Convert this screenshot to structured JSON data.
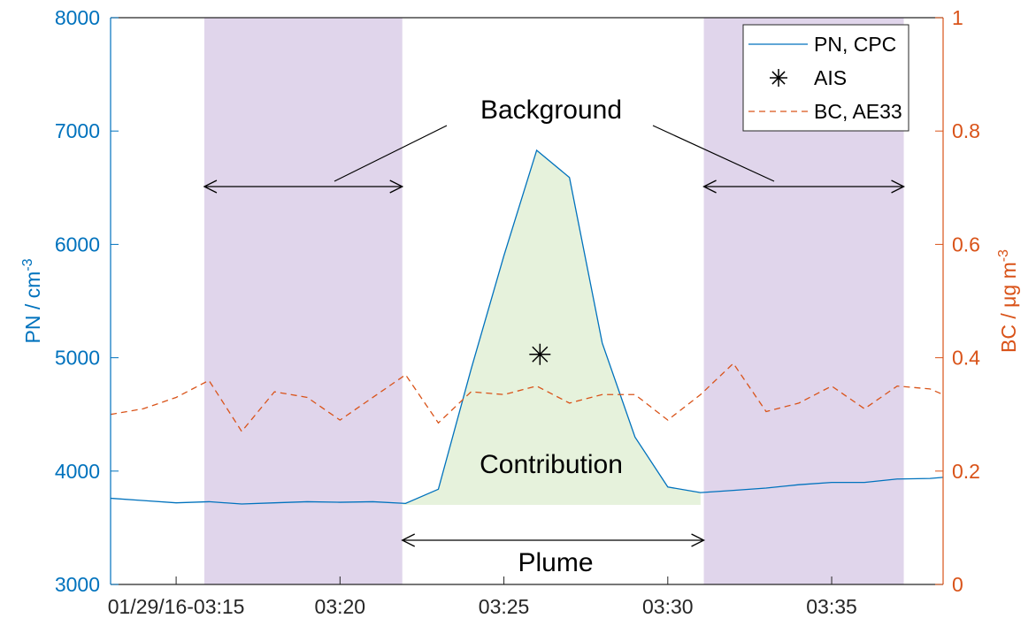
{
  "chart_data": {
    "type": "line",
    "y_label": {
      "text": "PN / cm",
      "sup": "-3"
    },
    "y2_label": {
      "text": "BC / μg m",
      "sup": "-3"
    },
    "xlim": [
      13,
      38.4
    ],
    "xticks": [
      {
        "value": 15,
        "label": "01/29/16-03:15"
      },
      {
        "value": 20,
        "label": "03:20"
      },
      {
        "value": 25,
        "label": "03:25"
      },
      {
        "value": 30,
        "label": "03:30"
      },
      {
        "value": 35,
        "label": "03:35"
      }
    ],
    "ylim": [
      3000,
      8000
    ],
    "yticks": [
      3000,
      4000,
      5000,
      6000,
      7000,
      8000
    ],
    "y2lim": [
      0,
      1
    ],
    "y2ticks": [
      0,
      0.2,
      0.4,
      0.6,
      0.8,
      1
    ],
    "background_periods": [
      [
        15.86,
        21.9
      ],
      [
        31.1,
        37.2
      ]
    ],
    "annotations": {
      "background": "Background",
      "contribution": "Contribution",
      "plume": "Plume"
    },
    "legend": "upper right",
    "series": [
      {
        "name": "PN, CPC",
        "color": "#0072BD",
        "style": "solid",
        "x": [
          13,
          14,
          15,
          16,
          17,
          18,
          19,
          20,
          21,
          22,
          23,
          24,
          25,
          26,
          27,
          28,
          29,
          30,
          31,
          32,
          33,
          34,
          35,
          36,
          37,
          38,
          38.4
        ],
        "values": [
          3760,
          3740,
          3720,
          3730,
          3710,
          3720,
          3730,
          3725,
          3730,
          3715,
          3840,
          4900,
          5900,
          6830,
          6590,
          5130,
          4300,
          3860,
          3810,
          3830,
          3850,
          3880,
          3900,
          3900,
          3930,
          3935,
          3945
        ]
      },
      {
        "name": "AIS",
        "color": "#000000",
        "style": "star",
        "x": [
          26.1
        ],
        "values": [
          5030
        ]
      },
      {
        "name": "BC, AE33",
        "color": "#D95319",
        "style": "dashed",
        "axis": "y2",
        "x": [
          13,
          14,
          15,
          16,
          17,
          18,
          19,
          20,
          21,
          22,
          23,
          24,
          25,
          26,
          27,
          28,
          29,
          30,
          31,
          32,
          33,
          34,
          35,
          36,
          37,
          38,
          38.4
        ],
        "values": [
          0.3,
          0.31,
          0.33,
          0.36,
          0.27,
          0.34,
          0.33,
          0.29,
          0.33,
          0.37,
          0.285,
          0.34,
          0.335,
          0.35,
          0.32,
          0.335,
          0.335,
          0.29,
          0.335,
          0.39,
          0.305,
          0.32,
          0.35,
          0.31,
          0.35,
          0.345,
          0.335
        ]
      }
    ]
  }
}
